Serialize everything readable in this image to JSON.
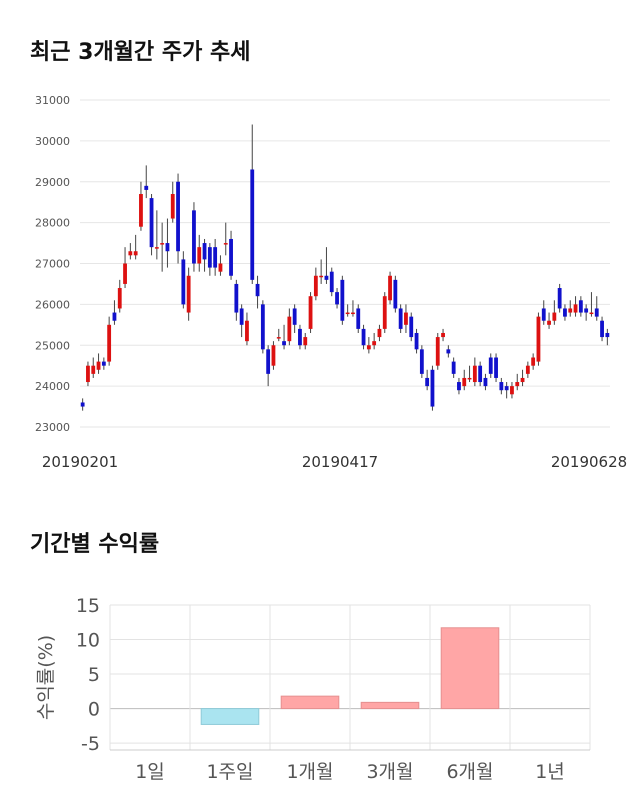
{
  "section1": {
    "title": "최근 3개월간 주가 추세"
  },
  "section2": {
    "title": "기간별 수익률"
  },
  "colors": {
    "up": "#dd1111",
    "down": "#1111cc",
    "return_bar": "#ffa6a6",
    "return_bar_neg": "#aae4f0"
  },
  "chart_data": [
    {
      "type": "candlestick",
      "ylim": [
        23000,
        31000
      ],
      "y_ticks": [
        "31000",
        "30000",
        "29000",
        "28000",
        "27000",
        "26000",
        "25000",
        "24000",
        "23000"
      ],
      "x_tick_labels": [
        "20190201",
        "20190417",
        "20190628"
      ],
      "candles": [
        [
          23600,
          23500,
          23400,
          23700
        ],
        [
          24100,
          24500,
          24000,
          24600
        ],
        [
          24300,
          24500,
          24200,
          24700
        ],
        [
          24400,
          24600,
          24300,
          24800
        ],
        [
          24600,
          24500,
          24400,
          24700
        ],
        [
          24600,
          25500,
          24500,
          25700
        ],
        [
          25800,
          25600,
          25500,
          26100
        ],
        [
          25900,
          26400,
          25800,
          26600
        ],
        [
          26500,
          27000,
          26400,
          27400
        ],
        [
          27200,
          27300,
          27100,
          27500
        ],
        [
          27200,
          27300,
          27100,
          27700
        ],
        [
          27900,
          28700,
          27800,
          29000
        ],
        [
          28900,
          28800,
          28600,
          29400
        ],
        [
          28600,
          27400,
          27200,
          28700
        ],
        [
          27400,
          27400,
          27100,
          28300
        ],
        [
          27500,
          27500,
          26800,
          28000
        ],
        [
          27500,
          27300,
          26900,
          28100
        ],
        [
          28100,
          28700,
          28000,
          29000
        ],
        [
          29000,
          27300,
          27000,
          29200
        ],
        [
          27100,
          26000,
          25900,
          27300
        ],
        [
          25800,
          26700,
          25600,
          26900
        ],
        [
          28300,
          27000,
          26800,
          28500
        ],
        [
          27000,
          27400,
          26800,
          27700
        ],
        [
          27500,
          27100,
          26800,
          27600
        ],
        [
          27400,
          26900,
          26700,
          27500
        ],
        [
          27400,
          26900,
          26700,
          27600
        ],
        [
          26800,
          27000,
          26700,
          27200
        ],
        [
          27500,
          27500,
          27200,
          28000
        ],
        [
          27600,
          26700,
          26600,
          27800
        ],
        [
          26500,
          25800,
          25600,
          26600
        ],
        [
          25900,
          25500,
          25200,
          26000
        ],
        [
          25100,
          25600,
          25000,
          25800
        ],
        [
          29300,
          26600,
          26500,
          30400
        ],
        [
          26500,
          26200,
          25900,
          26700
        ],
        [
          26000,
          24900,
          24800,
          26100
        ],
        [
          24900,
          24300,
          24000,
          25000
        ],
        [
          24500,
          25000,
          24400,
          25100
        ],
        [
          25200,
          25200,
          25100,
          25400
        ],
        [
          25100,
          25000,
          24900,
          25500
        ],
        [
          25100,
          25700,
          25000,
          25900
        ],
        [
          25900,
          25500,
          25300,
          26000
        ],
        [
          25400,
          25000,
          24900,
          25500
        ],
        [
          25000,
          25200,
          24900,
          25300
        ],
        [
          25400,
          26200,
          25300,
          26300
        ],
        [
          26200,
          26700,
          26100,
          26900
        ],
        [
          26700,
          26700,
          26500,
          27100
        ],
        [
          26700,
          26600,
          26500,
          27400
        ],
        [
          26800,
          26300,
          26200,
          26900
        ],
        [
          26300,
          26000,
          25900,
          26400
        ],
        [
          26600,
          25600,
          25500,
          26700
        ],
        [
          25800,
          25800,
          25700,
          26000
        ],
        [
          25800,
          25800,
          25700,
          26100
        ],
        [
          25900,
          25400,
          25300,
          26000
        ],
        [
          25400,
          25000,
          24900,
          25500
        ],
        [
          24900,
          25000,
          24800,
          25200
        ],
        [
          25000,
          25100,
          24900,
          25300
        ],
        [
          25200,
          25400,
          25100,
          25500
        ],
        [
          25400,
          26200,
          25300,
          26300
        ],
        [
          26100,
          26700,
          26000,
          26800
        ],
        [
          26600,
          25900,
          25800,
          26700
        ],
        [
          25900,
          25400,
          25300,
          26000
        ],
        [
          25500,
          25800,
          25300,
          26000
        ],
        [
          25700,
          25200,
          25100,
          25800
        ],
        [
          25300,
          24900,
          24800,
          25400
        ],
        [
          24900,
          24300,
          24200,
          25000
        ],
        [
          24200,
          24000,
          23900,
          24400
        ],
        [
          24400,
          23500,
          23400,
          24500
        ],
        [
          24500,
          25200,
          24400,
          25300
        ],
        [
          25200,
          25300,
          25100,
          25400
        ],
        [
          24900,
          24800,
          24700,
          25000
        ],
        [
          24600,
          24300,
          24200,
          24700
        ],
        [
          24100,
          23900,
          23800,
          24200
        ],
        [
          24000,
          24200,
          23900,
          24400
        ],
        [
          24200,
          24200,
          24100,
          24500
        ],
        [
          24100,
          24500,
          24000,
          24700
        ],
        [
          24500,
          24100,
          24000,
          24600
        ],
        [
          24200,
          24000,
          23900,
          24300
        ],
        [
          24700,
          24300,
          24200,
          24800
        ],
        [
          24700,
          24200,
          24100,
          24800
        ],
        [
          24100,
          23900,
          23800,
          24200
        ],
        [
          24000,
          23900,
          23700,
          24100
        ],
        [
          23800,
          24000,
          23700,
          24100
        ],
        [
          24000,
          24100,
          23900,
          24300
        ],
        [
          24100,
          24200,
          24000,
          24400
        ],
        [
          24300,
          24500,
          24200,
          24600
        ],
        [
          24500,
          24700,
          24400,
          24800
        ],
        [
          24600,
          25700,
          24500,
          25800
        ],
        [
          25900,
          25600,
          25500,
          26100
        ],
        [
          25500,
          25600,
          25400,
          25800
        ],
        [
          25600,
          25800,
          25500,
          26100
        ],
        [
          26400,
          25900,
          25800,
          26500
        ],
        [
          25900,
          25700,
          25600,
          26000
        ],
        [
          25800,
          25900,
          25700,
          26100
        ],
        [
          25800,
          26000,
          25700,
          26200
        ],
        [
          26100,
          25800,
          25700,
          26200
        ],
        [
          25900,
          25800,
          25600,
          26000
        ],
        [
          25800,
          25800,
          25700,
          26300
        ],
        [
          25900,
          25700,
          25600,
          26200
        ],
        [
          25600,
          25200,
          25100,
          25700
        ],
        [
          25300,
          25200,
          25000,
          25400
        ]
      ]
    },
    {
      "type": "bar",
      "categories": [
        "1일",
        "1주일",
        "1개월",
        "3개월",
        "6개월",
        "1년"
      ],
      "values": [
        0,
        -2.3,
        1.8,
        0.9,
        11.7,
        0
      ],
      "ylabel": "수익률(%)",
      "ylim": [
        -6,
        15
      ],
      "y_ticks": [
        "15",
        "10",
        "5",
        "0",
        "-5"
      ]
    }
  ]
}
